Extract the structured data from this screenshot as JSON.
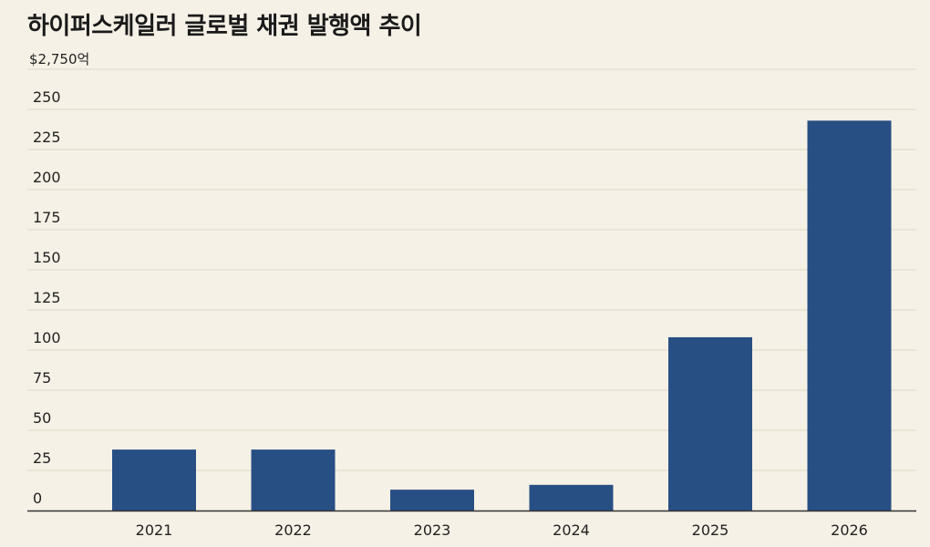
{
  "chart_data": {
    "type": "bar",
    "title": "하이퍼스케일러 글로벌 채권 발행액 추이",
    "annotation": "$2,750억",
    "xlabel": "",
    "ylabel": "",
    "categories": [
      "2021",
      "2022",
      "2023",
      "2024",
      "2025",
      "2026"
    ],
    "values": [
      38,
      38,
      13,
      16,
      108,
      243
    ],
    "ylim": [
      0,
      250
    ],
    "yticks": [
      0,
      25,
      50,
      75,
      100,
      125,
      150,
      175,
      200,
      225,
      250
    ],
    "grid": true,
    "legend": "none",
    "colors": {
      "bar": "#284f84",
      "background": "#f6f1e6",
      "grid": "#ddd6c8",
      "axis": "#333333",
      "text": "#222222"
    }
  }
}
